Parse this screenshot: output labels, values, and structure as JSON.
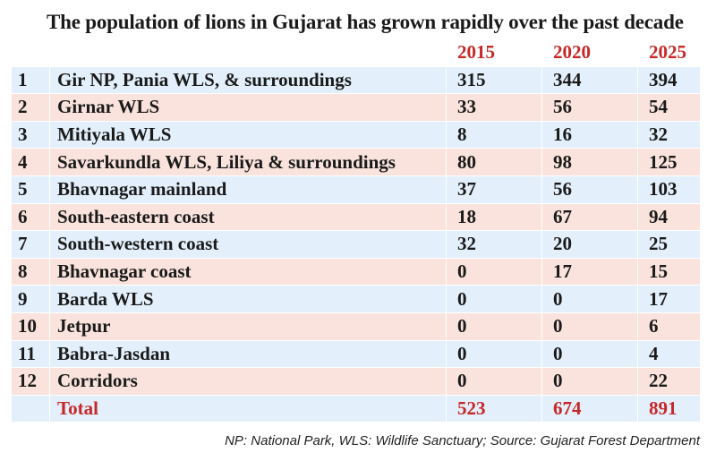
{
  "title": "The population of lions in Gujarat has grown rapidly over the past decade",
  "colors": {
    "accent": "#c62828",
    "row_blue": "#e3f0fb",
    "row_pink": "#f9e3dc"
  },
  "years": [
    "2015",
    "2020",
    "2025"
  ],
  "rows": [
    {
      "num": "1",
      "name": "Gir NP, Pania WLS, & surroundings",
      "v2015": "315",
      "v2020": "344",
      "v2025": "394"
    },
    {
      "num": "2",
      "name": "Girnar WLS",
      "v2015": "33",
      "v2020": "56",
      "v2025": "54"
    },
    {
      "num": "3",
      "name": "Mitiyala WLS",
      "v2015": "8",
      "v2020": "16",
      "v2025": "32"
    },
    {
      "num": "4",
      "name": "Savarkundla WLS, Liliya & surroundings",
      "v2015": "80",
      "v2020": "98",
      "v2025": "125"
    },
    {
      "num": "5",
      "name": "Bhavnagar mainland",
      "v2015": "37",
      "v2020": "56",
      "v2025": "103"
    },
    {
      "num": "6",
      "name": "South-eastern coast",
      "v2015": "18",
      "v2020": "67",
      "v2025": "94"
    },
    {
      "num": "7",
      "name": "South-western coast",
      "v2015": "32",
      "v2020": "20",
      "v2025": "25"
    },
    {
      "num": "8",
      "name": "Bhavnagar coast",
      "v2015": "0",
      "v2020": "17",
      "v2025": "15"
    },
    {
      "num": "9",
      "name": "Barda WLS",
      "v2015": "0",
      "v2020": "0",
      "v2025": "17"
    },
    {
      "num": "10",
      "name": "Jetpur",
      "v2015": "0",
      "v2020": "0",
      "v2025": "6"
    },
    {
      "num": "11",
      "name": "Babra-Jasdan",
      "v2015": "0",
      "v2020": "0",
      "v2025": "4"
    },
    {
      "num": "12",
      "name": "Corridors",
      "v2015": "0",
      "v2020": "0",
      "v2025": "22"
    }
  ],
  "total": {
    "label": "Total",
    "v2015": "523",
    "v2020": "674",
    "v2025": "891"
  },
  "footnote": "NP: National Park, WLS: Wildlife Sanctuary;  Source: Gujarat Forest Department"
}
